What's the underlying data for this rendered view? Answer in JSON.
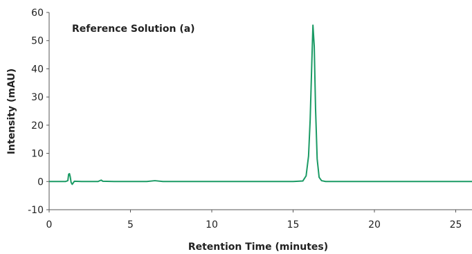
{
  "chart_data": {
    "type": "line",
    "title": "",
    "annotation": "Reference Solution (a)",
    "xlabel": "Retention Time (minutes)",
    "ylabel": "Intensity (mAU)",
    "xlim": [
      0,
      26
    ],
    "ylim": [
      -10,
      60
    ],
    "xticks": [
      0,
      5,
      10,
      15,
      20,
      25
    ],
    "yticks": [
      -10,
      0,
      10,
      20,
      30,
      40,
      50,
      60
    ],
    "grid": false,
    "legend": "none",
    "series": [
      {
        "color": "#1a9a64",
        "x": [
          0,
          1.0,
          1.15,
          1.2,
          1.25,
          1.3,
          1.35,
          1.42,
          1.55,
          2.0,
          3.0,
          3.2,
          3.3,
          4.0,
          6.0,
          6.5,
          7.0,
          10.0,
          15.0,
          15.6,
          15.8,
          15.95,
          16.05,
          16.15,
          16.22,
          16.3,
          16.38,
          16.48,
          16.6,
          16.75,
          17.0,
          20.0,
          26.0
        ],
        "y": [
          0,
          0,
          0.3,
          2.6,
          2.8,
          1.6,
          -0.3,
          -1.0,
          0.1,
          0,
          0,
          0.5,
          0.1,
          0,
          0,
          0.3,
          0,
          0,
          0,
          0.2,
          2.0,
          9.0,
          22.0,
          42.0,
          55.5,
          48.0,
          26.0,
          8.0,
          1.5,
          0.3,
          0,
          0,
          0
        ]
      }
    ]
  }
}
